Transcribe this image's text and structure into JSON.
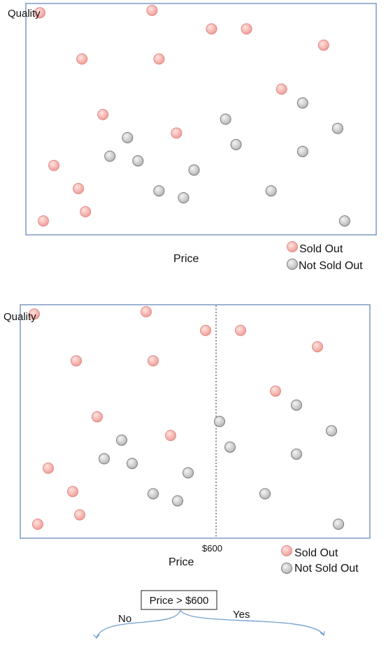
{
  "colors": {
    "sold_out_fill": "#f5b3ad",
    "sold_out_stroke": "#e08a85",
    "not_sold_out_fill": "#d9d9d9",
    "not_sold_out_stroke": "#7a7a7a",
    "frame": "#7b9ac3",
    "branch_line": "#6f9fd0"
  },
  "legend": {
    "sold_out": "Sold Out",
    "not_sold_out": "Not Sold Out"
  },
  "panels": [
    {
      "y_axis_label": "Quality",
      "x_axis_label": "Price"
    },
    {
      "y_axis_label": "Quality",
      "x_axis_label": "Price",
      "split_label": "$600",
      "split_line": "dashed"
    }
  ],
  "points": {
    "sold_out": [
      [
        0.04,
        0.96
      ],
      [
        0.36,
        0.97
      ],
      [
        0.53,
        0.89
      ],
      [
        0.63,
        0.89
      ],
      [
        0.85,
        0.82
      ],
      [
        0.16,
        0.76
      ],
      [
        0.38,
        0.76
      ],
      [
        0.73,
        0.63
      ],
      [
        0.22,
        0.52
      ],
      [
        0.43,
        0.44
      ],
      [
        0.08,
        0.3
      ],
      [
        0.15,
        0.2
      ],
      [
        0.17,
        0.1
      ],
      [
        0.05,
        0.06
      ]
    ],
    "not_sold_out": [
      [
        0.79,
        0.57
      ],
      [
        0.57,
        0.5
      ],
      [
        0.89,
        0.46
      ],
      [
        0.29,
        0.42
      ],
      [
        0.6,
        0.39
      ],
      [
        0.24,
        0.34
      ],
      [
        0.32,
        0.32
      ],
      [
        0.79,
        0.36
      ],
      [
        0.48,
        0.28
      ],
      [
        0.38,
        0.19
      ],
      [
        0.45,
        0.16
      ],
      [
        0.7,
        0.19
      ],
      [
        0.91,
        0.06
      ]
    ]
  },
  "tree": {
    "root_label": "Price > $600",
    "left_branch_label": "No",
    "right_branch_label": "Yes"
  }
}
